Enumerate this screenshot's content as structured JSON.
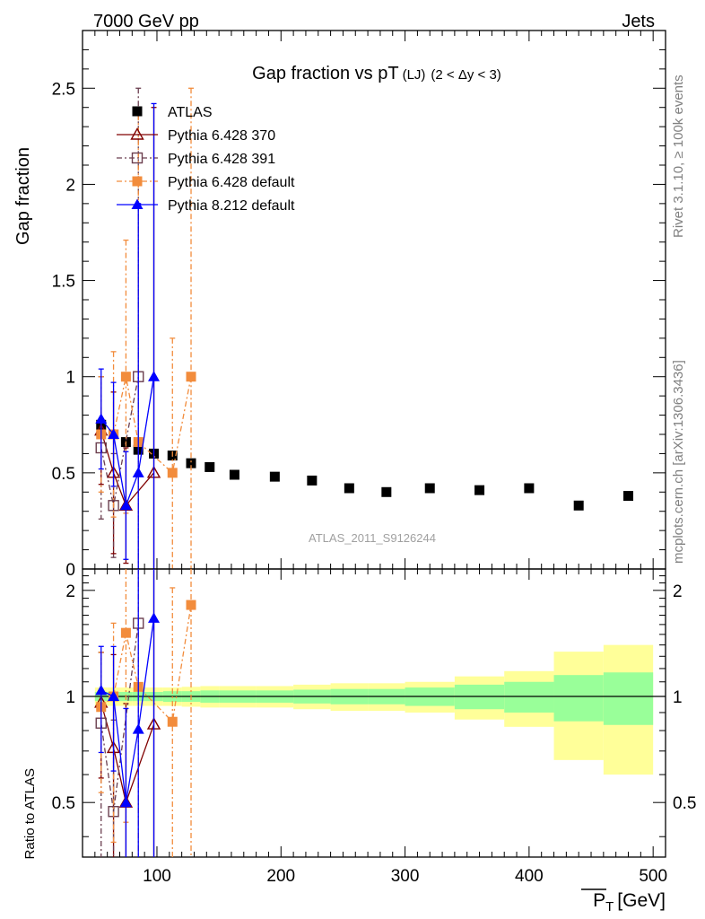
{
  "header": {
    "left": "7000 GeV pp",
    "right": "Jets"
  },
  "side_labels": {
    "rivet": "Rivet 3.1.10, ≥ 100k events",
    "mcplots": "mcplots.cern.ch [arXiv:1306.3436]"
  },
  "chart_data": {
    "type": "scatter",
    "title": "Gap fraction vs pT",
    "title_sub": "(LJ)",
    "title_cond": "(2 < Δy < 3)",
    "watermark": "ATLAS_2011_S9126244",
    "xlabel": "P",
    "xlabel_sub": "T",
    "xlabel_unit": "[GeV]",
    "ylabel": "Gap fraction",
    "ratio_ylabel": "Ratio to ATLAS",
    "xlim": [
      40,
      510
    ],
    "ylim": [
      0,
      2.8
    ],
    "ratio_ylim": [
      0.35,
      2.3
    ],
    "x_ticks": [
      "100",
      "200",
      "300",
      "400",
      "500"
    ],
    "y_ticks": [
      "0",
      "0.5",
      "1",
      "1.5",
      "2",
      "2.5"
    ],
    "ratio_ticks": [
      "0.5",
      "1",
      "2"
    ],
    "data": {
      "name": "ATLAS",
      "color": "#000000",
      "x": [
        55,
        65,
        75,
        85,
        97.5,
        112.5,
        127.5,
        142.5,
        162.5,
        195,
        225,
        255,
        285,
        320,
        360,
        400,
        440,
        480
      ],
      "y": [
        0.75,
        0.7,
        0.66,
        0.62,
        0.6,
        0.59,
        0.55,
        0.53,
        0.49,
        0.48,
        0.46,
        0.42,
        0.4,
        0.42,
        0.41,
        0.42,
        0.33,
        0.38
      ],
      "xlo": [
        50,
        60,
        70,
        80,
        90,
        105,
        120,
        135,
        150,
        180,
        210,
        240,
        270,
        300,
        340,
        380,
        420,
        460
      ],
      "xhi": [
        60,
        70,
        80,
        90,
        105,
        120,
        135,
        150,
        180,
        210,
        240,
        270,
        300,
        340,
        380,
        420,
        460,
        500
      ],
      "band_inner": [
        0.03,
        0.03,
        0.03,
        0.03,
        0.03,
        0.035,
        0.035,
        0.04,
        0.04,
        0.04,
        0.045,
        0.05,
        0.05,
        0.06,
        0.08,
        0.1,
        0.15,
        0.17
      ],
      "band_outer": [
        0.06,
        0.06,
        0.06,
        0.06,
        0.06,
        0.06,
        0.065,
        0.07,
        0.07,
        0.07,
        0.08,
        0.09,
        0.09,
        0.1,
        0.14,
        0.18,
        0.34,
        0.4
      ]
    },
    "series": [
      {
        "name": "Pythia 6.428 370",
        "color": "#800000",
        "marker": "triangle-open",
        "dash": "",
        "x": [
          55,
          65,
          75,
          97.5
        ],
        "y": [
          0.72,
          0.5,
          0.33,
          0.5
        ],
        "err": [
          0.28,
          0.42,
          0.3,
          1.9
        ]
      },
      {
        "name": "Pythia 6.428 391",
        "color": "#6b3f4f",
        "marker": "square-open",
        "dash": "6,3,2,3",
        "x": [
          55,
          65,
          85
        ],
        "y": [
          0.63,
          0.33,
          1.0
        ],
        "err": [
          0.37,
          0.27,
          1.5
        ]
      },
      {
        "name": "Pythia 6.428 default",
        "color": "#f28c3c",
        "marker": "square",
        "dash": "6,3,2,3",
        "x": [
          55,
          65,
          75,
          85,
          112.5,
          127.5
        ],
        "y": [
          0.7,
          0.7,
          1.0,
          0.66,
          0.5,
          1.0
        ],
        "err": [
          0.3,
          0.43,
          0.71,
          1.7,
          0.7,
          1.5
        ]
      },
      {
        "name": "Pythia 8.212 default",
        "color": "#0000ff",
        "marker": "triangle",
        "dash": "",
        "x": [
          55,
          65,
          75,
          85,
          97.5
        ],
        "y": [
          0.78,
          0.7,
          0.33,
          0.5,
          1.0
        ],
        "err": [
          0.26,
          0.27,
          0.28,
          1.4,
          1.42
        ]
      }
    ]
  }
}
